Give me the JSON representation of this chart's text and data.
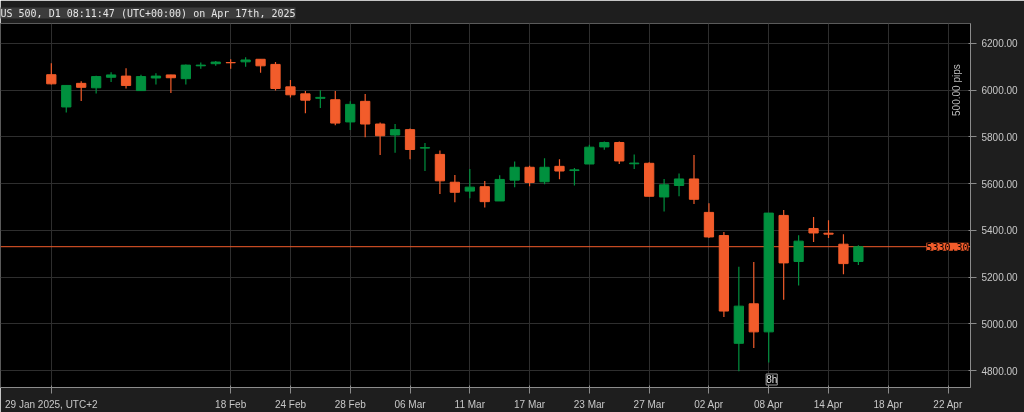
{
  "chart_data": {
    "type": "candlestick",
    "title": "US 500, D1 08:11:47 (UTC+00:00) on Apr 17th, 2025",
    "categories": [
      "29 Jan 2025, UTC+2",
      null,
      null,
      null,
      null,
      null,
      null,
      null,
      null,
      null,
      null,
      null,
      "18 Feb",
      null,
      null,
      null,
      "24 Feb",
      null,
      null,
      null,
      "28 Feb",
      null,
      null,
      null,
      "06 Mar",
      null,
      null,
      null,
      "11 Mar",
      null,
      null,
      null,
      "17 Mar",
      null,
      null,
      null,
      "23 Mar",
      null,
      null,
      null,
      "27 Mar",
      null,
      null,
      null,
      "02 Apr",
      null,
      null,
      null,
      "08 Apr",
      null,
      null,
      null,
      "14 Apr",
      null,
      null,
      null,
      "18 Apr",
      null,
      null,
      null,
      "22 Apr",
      null
    ],
    "ohlc": [
      [
        6066,
        6115,
        6024,
        6027
      ],
      [
        5928,
        6020,
        5904,
        6020
      ],
      [
        6029,
        6038,
        5953,
        6012
      ],
      [
        6010,
        6062,
        5986,
        6058
      ],
      [
        6055,
        6076,
        6035,
        6065
      ],
      [
        6060,
        6094,
        6007,
        6020
      ],
      [
        5998,
        6066,
        5998,
        6058
      ],
      [
        6052,
        6072,
        6024,
        6060
      ],
      [
        6065,
        6066,
        5988,
        6053
      ],
      [
        6049,
        6110,
        6024,
        6107
      ],
      [
        6104,
        6118,
        6091,
        6107
      ],
      [
        6113,
        6125,
        6104,
        6120
      ],
      [
        6118,
        6132,
        6091,
        6117
      ],
      [
        6121,
        6141,
        6100,
        6129
      ],
      [
        6132,
        6132,
        6074,
        6104
      ],
      [
        6110,
        6120,
        5998,
        6007
      ],
      [
        6014,
        6043,
        5969,
        5980
      ],
      [
        5984,
        5996,
        5901,
        5957
      ],
      [
        5965,
        6000,
        5924,
        5969
      ],
      [
        5959,
        5996,
        5850,
        5859
      ],
      [
        5864,
        5952,
        5829,
        5939
      ],
      [
        5952,
        5983,
        5798,
        5855
      ],
      [
        5855,
        5862,
        5723,
        5805
      ],
      [
        5808,
        5855,
        5732,
        5831
      ],
      [
        5831,
        5836,
        5704,
        5746
      ],
      [
        5752,
        5774,
        5654,
        5754
      ],
      [
        5725,
        5742,
        5556,
        5612
      ],
      [
        5606,
        5637,
        5520,
        5563
      ],
      [
        5568,
        5663,
        5537,
        5585
      ],
      [
        5587,
        5611,
        5498,
        5523
      ],
      [
        5526,
        5636,
        5526,
        5618
      ],
      [
        5615,
        5695,
        5585,
        5670
      ],
      [
        5670,
        5676,
        5589,
        5605
      ],
      [
        5608,
        5709,
        5597,
        5670
      ],
      [
        5674,
        5704,
        5619,
        5654
      ],
      [
        5656,
        5667,
        5592,
        5659
      ],
      [
        5684,
        5766,
        5684,
        5756
      ],
      [
        5757,
        5780,
        5745,
        5776
      ],
      [
        5776,
        5780,
        5684,
        5697
      ],
      [
        5685,
        5725,
        5663,
        5688
      ],
      [
        5687,
        5692,
        5546,
        5546
      ],
      [
        5543,
        5620,
        5481,
        5595
      ],
      [
        5592,
        5643,
        5546,
        5620
      ],
      [
        5620,
        5723,
        5513,
        5533
      ],
      [
        5477,
        5516,
        5368,
        5372
      ],
      [
        5378,
        5393,
        5030,
        5055
      ],
      [
        4917,
        5244,
        4797,
        5076
      ],
      [
        5086,
        5265,
        4897,
        4966
      ],
      [
        4966,
        5474,
        4835,
        5474
      ],
      [
        5464,
        5487,
        5103,
        5261
      ],
      [
        5267,
        5379,
        5164,
        5354
      ],
      [
        5408,
        5457,
        5350,
        5389
      ],
      [
        5388,
        5443,
        5368,
        5384
      ],
      [
        5341,
        5384,
        5212,
        5258
      ],
      [
        5267,
        5336,
        5252,
        5330
      ],
      null,
      null,
      null,
      null,
      null,
      null,
      null
    ],
    "colors": [
      "#f25c2b",
      "#00903e",
      "#f25c2b",
      "#00903e",
      "#00903e",
      "#f25c2b",
      "#00903e",
      "#00903e",
      "#f25c2b",
      "#00903e",
      "#00903e",
      "#00903e",
      "#f25c2b",
      "#00903e",
      "#f25c2b",
      "#f25c2b",
      "#f25c2b",
      "#f25c2b",
      "#00903e",
      "#f25c2b",
      "#00903e",
      "#f25c2b",
      "#f25c2b",
      "#00903e",
      "#f25c2b",
      "#00903e",
      "#f25c2b",
      "#f25c2b",
      "#00903e",
      "#f25c2b",
      "#00903e",
      "#00903e",
      "#f25c2b",
      "#00903e",
      "#f25c2b",
      "#00903e",
      "#00903e",
      "#00903e",
      "#f25c2b",
      "#00903e",
      "#f25c2b",
      "#00903e",
      "#00903e",
      "#f25c2b",
      "#f25c2b",
      "#f25c2b",
      "#00903e",
      "#f25c2b",
      "#00903e",
      "#f25c2b",
      "#00903e",
      "#f25c2b",
      "#f25c2b",
      "#f25c2b",
      "#00903e",
      null,
      null,
      null,
      null,
      null,
      null,
      null
    ],
    "ylim": [
      4728,
      6285
    ],
    "yticks": [
      {
        "value": 4800,
        "label": "4800.00"
      },
      {
        "value": 5000,
        "label": "5000.00"
      },
      {
        "value": 5200,
        "label": "5200.00"
      },
      {
        "value": 5400,
        "label": "5400.00"
      },
      {
        "value": 5600,
        "label": "5600.00"
      },
      {
        "value": 5800,
        "label": "5800.00"
      },
      {
        "value": 6000,
        "label": "6000.00"
      },
      {
        "value": 6200,
        "label": "6200.00"
      }
    ],
    "ref_lines": [
      {
        "axis": "y",
        "value": 5330.3,
        "label": "5330.30",
        "color": "#f25c2b"
      }
    ],
    "annotations": [
      "500.00 pips",
      "8h"
    ],
    "grid": true
  }
}
